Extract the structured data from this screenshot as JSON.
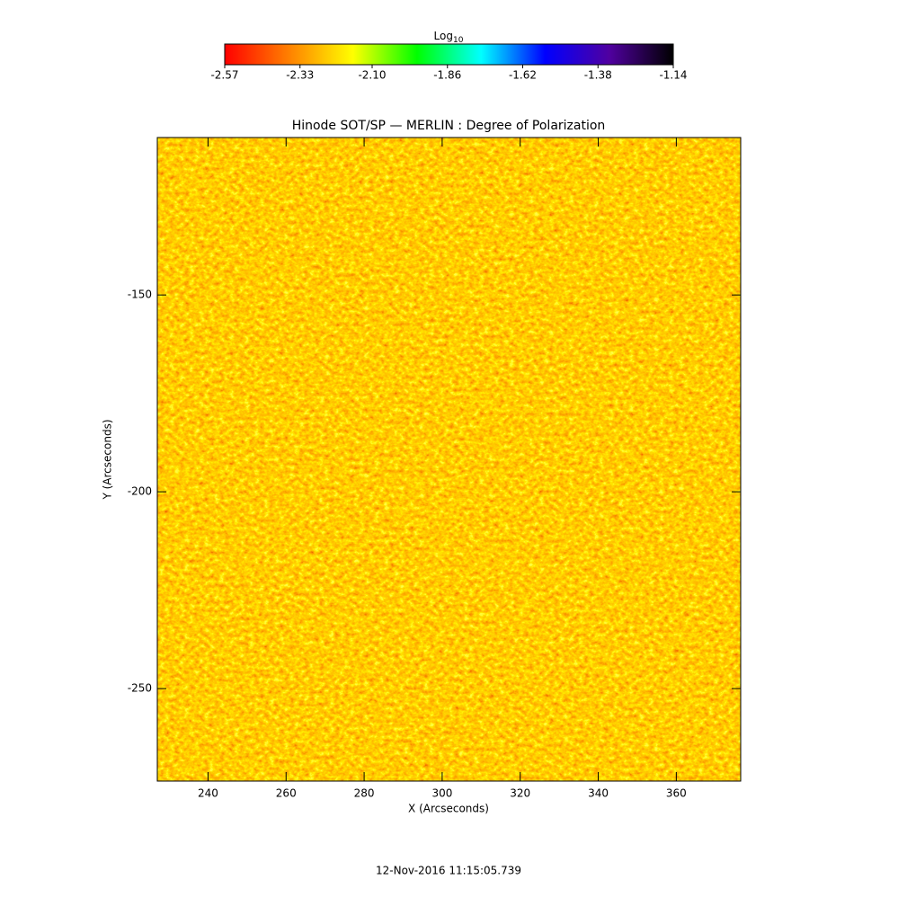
{
  "chart_data": {
    "type": "image",
    "title": "Hinode SOT/SP — MERLIN : Degree of Polarization",
    "x_label": "X (Arcseconds)",
    "y_label": "Y (Arcseconds)",
    "date": "12-Nov-2016 11:15:05.739",
    "xlim": [
      227,
      376.5
    ],
    "ylim": [
      -273.5,
      -110
    ],
    "xticks": [
      240,
      260,
      280,
      300,
      320,
      340,
      360
    ],
    "yticks": [
      -150,
      -200,
      -250
    ],
    "colorbar": {
      "title": "Log",
      "title_subscript": "10",
      "lim": [
        -2.57,
        -1.14
      ],
      "ticks": [
        -2.57,
        -2.33,
        {
          "value": -2.1,
          "label": "-2.10"
        },
        -1.86,
        -1.62,
        -1.38,
        -1.14
      ],
      "colors": [
        "#ff0000",
        "#ff8000",
        "#ffff00",
        "#00ff00",
        "#00ffff",
        "#0000ff",
        "#5000a0",
        "#000000"
      ]
    }
  }
}
